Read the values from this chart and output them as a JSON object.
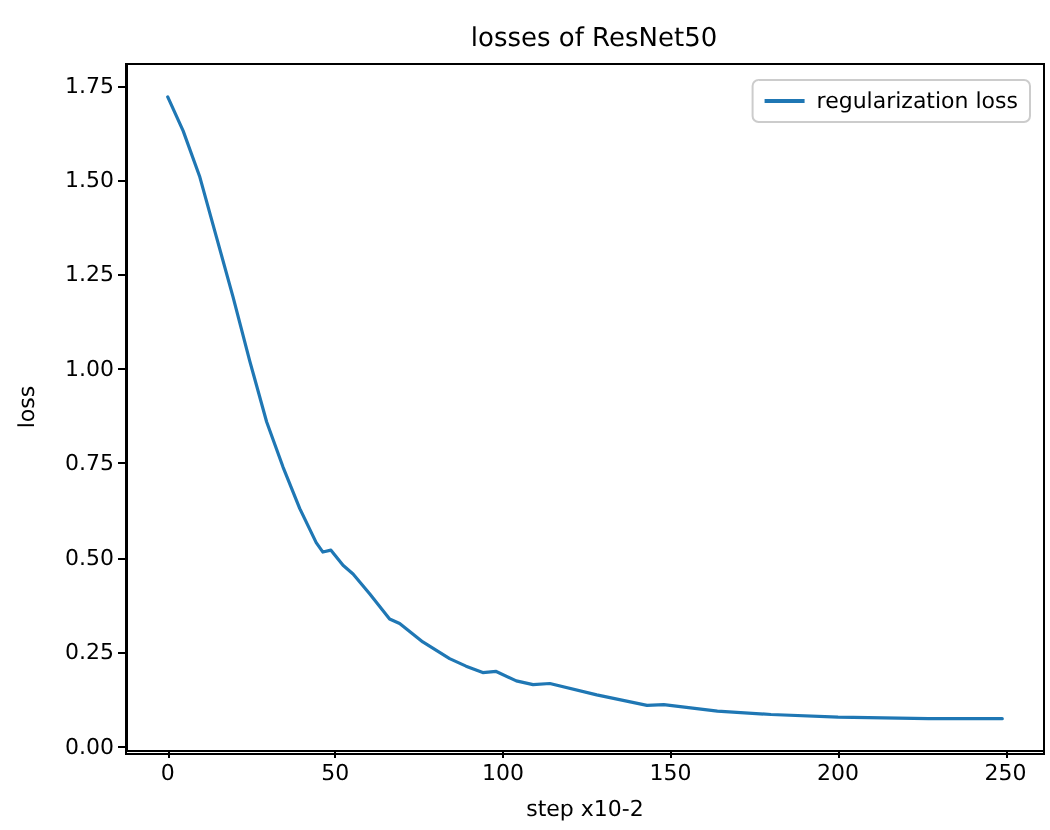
{
  "chart_data": {
    "type": "line",
    "title": "losses of ResNet50",
    "xlabel": "step x10-2",
    "ylabel": "loss",
    "legend": "top right",
    "grid": false,
    "xlim": [
      -12.45,
      261.45
    ],
    "xticks": [
      0,
      50,
      100,
      150,
      200,
      250
    ],
    "ylim": [
      -0.009,
      1.807
    ],
    "yticks": [
      {
        "value": 0,
        "label": "0.00"
      },
      {
        "value": 0.25,
        "label": "0.25"
      },
      {
        "value": 0.5,
        "label": "0.50"
      },
      {
        "value": 0.75,
        "label": "0.75"
      },
      {
        "value": 1,
        "label": "1.00"
      },
      {
        "value": 1.25,
        "label": "1.25"
      },
      {
        "value": 1.5,
        "label": "1.50"
      },
      {
        "value": 1.75,
        "label": "1.75"
      }
    ],
    "series": [
      {
        "name": "regularization loss",
        "color": "#1f77b4",
        "x": [
          0,
          4.6,
          9.5,
          14.5,
          19.5,
          24.5,
          29.5,
          34.4,
          39.4,
          44.3,
          46.3,
          48.7,
          52.3,
          55.3,
          60.3,
          66.2,
          69.2,
          76.1,
          84.1,
          89,
          94,
          98,
          104,
          109,
          114,
          128,
          143,
          148,
          164,
          180,
          200,
          227,
          249
        ],
        "values": [
          1.72,
          1.63,
          1.51,
          1.35,
          1.19,
          1.02,
          0.86,
          0.74,
          0.63,
          0.54,
          0.515,
          0.52,
          0.48,
          0.457,
          0.404,
          0.338,
          0.326,
          0.277,
          0.233,
          0.213,
          0.196,
          0.199,
          0.174,
          0.164,
          0.167,
          0.137,
          0.109,
          0.111,
          0.094,
          0.085,
          0.078,
          0.074,
          0.074
        ]
      }
    ]
  }
}
